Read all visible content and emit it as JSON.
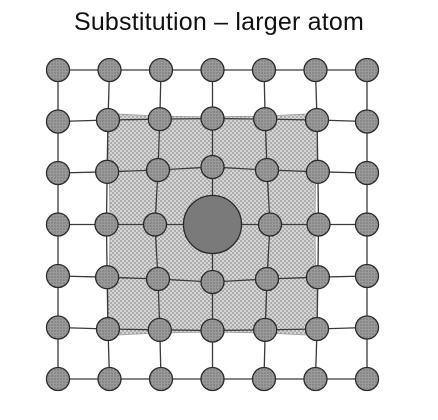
{
  "title": "Substitution – larger atom",
  "colors": {
    "background": "#ffffff",
    "bond": "#3a3a3a",
    "atom_fill": "#8c8c8c",
    "atom_stroke": "#2a2a2a",
    "strain_fill": "#c8c8c8",
    "solute_fill": "#7a7a7a"
  },
  "lattice": {
    "rows": 7,
    "cols": 7,
    "solute_position": [
      3,
      3
    ]
  }
}
